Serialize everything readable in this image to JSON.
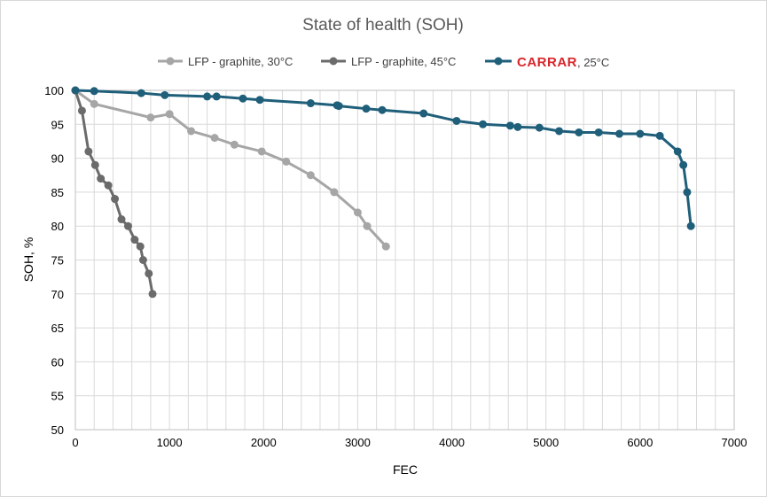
{
  "chart_data": {
    "type": "line",
    "title": "State of health (SOH)",
    "xlabel": "FEC",
    "ylabel": "SOH, %",
    "xlim": [
      0,
      7000
    ],
    "ylim": [
      50,
      100
    ],
    "xticks": [
      0,
      1000,
      2000,
      3000,
      4000,
      5000,
      6000,
      7000
    ],
    "yticks": [
      50,
      55,
      60,
      65,
      70,
      75,
      80,
      85,
      90,
      95,
      100
    ],
    "grid": true,
    "legend_position": "top",
    "series": [
      {
        "name": "LFP - graphite, 30°C",
        "color": "#a6a6a6",
        "points": [
          [
            0,
            100
          ],
          [
            200,
            98
          ],
          [
            800,
            96
          ],
          [
            1000,
            96.5
          ],
          [
            1230,
            94
          ],
          [
            1480,
            93
          ],
          [
            1690,
            92
          ],
          [
            1980,
            91
          ],
          [
            2240,
            89.5
          ],
          [
            2500,
            87.5
          ],
          [
            2750,
            85
          ],
          [
            3000,
            82
          ],
          [
            3100,
            80
          ],
          [
            3300,
            77
          ]
        ]
      },
      {
        "name": "LFP - graphite, 45°C",
        "color": "#6b6b6b",
        "points": [
          [
            0,
            100
          ],
          [
            70,
            97
          ],
          [
            140,
            91
          ],
          [
            210,
            89
          ],
          [
            270,
            87
          ],
          [
            350,
            86
          ],
          [
            420,
            84
          ],
          [
            490,
            81
          ],
          [
            560,
            80
          ],
          [
            630,
            78
          ],
          [
            690,
            77
          ],
          [
            720,
            75
          ],
          [
            780,
            73
          ],
          [
            820,
            70
          ]
        ]
      },
      {
        "name_brand": "CARRAR",
        "name": ", 25°C",
        "color": "#1f5f7a",
        "points": [
          [
            0,
            100
          ],
          [
            200,
            99.9
          ],
          [
            700,
            99.6
          ],
          [
            950,
            99.3
          ],
          [
            1400,
            99.1
          ],
          [
            1500,
            99.1
          ],
          [
            1780,
            98.8
          ],
          [
            1960,
            98.6
          ],
          [
            2500,
            98.1
          ],
          [
            2780,
            97.8
          ],
          [
            2800,
            97.7
          ],
          [
            3090,
            97.3
          ],
          [
            3260,
            97.1
          ],
          [
            3700,
            96.6
          ],
          [
            4050,
            95.5
          ],
          [
            4330,
            95
          ],
          [
            4620,
            94.8
          ],
          [
            4700,
            94.6
          ],
          [
            4930,
            94.5
          ],
          [
            5140,
            94
          ],
          [
            5350,
            93.8
          ],
          [
            5560,
            93.8
          ],
          [
            5780,
            93.6
          ],
          [
            6000,
            93.6
          ],
          [
            6210,
            93.3
          ],
          [
            6400,
            91
          ],
          [
            6460,
            89
          ],
          [
            6500,
            85
          ],
          [
            6540,
            80
          ]
        ]
      }
    ]
  }
}
